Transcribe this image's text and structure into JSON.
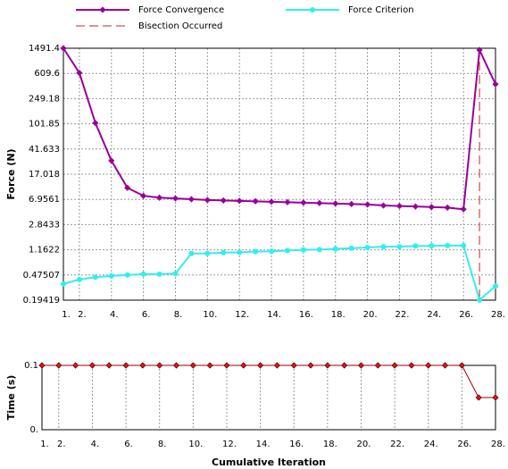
{
  "chart_data": [
    {
      "type": "line",
      "log_y": true,
      "grid": true,
      "y_label": "Force (N)",
      "x": [
        1,
        2,
        3,
        4,
        5,
        6,
        7,
        8,
        9,
        10,
        11,
        12,
        13,
        14,
        15,
        16,
        17,
        18,
        19,
        20,
        21,
        22,
        23,
        24,
        25,
        26,
        27,
        28
      ],
      "xlim": [
        1,
        28
      ],
      "xticks": [
        {
          "value": 1,
          "label": "1."
        },
        {
          "value": 2,
          "label": "2."
        },
        {
          "value": 4,
          "label": "4."
        },
        {
          "value": 6,
          "label": "6."
        },
        {
          "value": 8,
          "label": "8."
        },
        {
          "value": 10,
          "label": "10."
        },
        {
          "value": 12,
          "label": "12."
        },
        {
          "value": 14,
          "label": "14."
        },
        {
          "value": 16,
          "label": "16."
        },
        {
          "value": 18,
          "label": "18."
        },
        {
          "value": 20,
          "label": "20."
        },
        {
          "value": 22,
          "label": "22."
        },
        {
          "value": 24,
          "label": "24."
        },
        {
          "value": 26,
          "label": "26."
        },
        {
          "value": 28,
          "label": "28."
        }
      ],
      "ylim": [
        0.19419,
        1491.4
      ],
      "yticks": [
        0.19419,
        0.47507,
        1.1622,
        2.8433,
        6.9561,
        17.018,
        41.633,
        101.85,
        249.18,
        609.6,
        1491.4
      ],
      "series": [
        {
          "name": "Force Convergence",
          "color": "#990099",
          "marker": "diamond",
          "values": [
            1491.4,
            620,
            105,
            27.5,
            10.5,
            7.9,
            7.4,
            7.2,
            7.0,
            6.8,
            6.7,
            6.6,
            6.5,
            6.4,
            6.3,
            6.2,
            6.1,
            6.0,
            5.9,
            5.8,
            5.6,
            5.5,
            5.4,
            5.3,
            5.2,
            4.9,
            1400,
            416
          ]
        },
        {
          "name": "Force Criterion",
          "color": "#33eeee",
          "marker": "circle",
          "values": [
            0.345,
            0.405,
            0.44,
            0.46,
            0.475,
            0.49,
            0.49,
            0.5,
            1.02,
            1.02,
            1.05,
            1.06,
            1.09,
            1.1,
            1.13,
            1.16,
            1.17,
            1.2,
            1.23,
            1.26,
            1.3,
            1.3,
            1.33,
            1.34,
            1.35,
            1.35,
            0.195,
            0.32
          ]
        }
      ],
      "bisection": {
        "name": "Bisection Occurred",
        "x": 27,
        "color": "#cc2222"
      }
    },
    {
      "type": "line",
      "log_y": false,
      "grid": true,
      "y_label": "Time (s)",
      "x_label": "Cumulative Iteration",
      "x": [
        1,
        2,
        3,
        4,
        5,
        6,
        7,
        8,
        9,
        10,
        11,
        12,
        13,
        14,
        15,
        16,
        17,
        18,
        19,
        20,
        21,
        22,
        23,
        24,
        25,
        26,
        27,
        28
      ],
      "xlim": [
        1,
        28
      ],
      "xticks": [
        {
          "value": 1,
          "label": "1."
        },
        {
          "value": 2,
          "label": "2."
        },
        {
          "value": 4,
          "label": "4."
        },
        {
          "value": 6,
          "label": "6."
        },
        {
          "value": 8,
          "label": "8."
        },
        {
          "value": 10,
          "label": "10."
        },
        {
          "value": 12,
          "label": "12."
        },
        {
          "value": 14,
          "label": "14."
        },
        {
          "value": 16,
          "label": "16."
        },
        {
          "value": 18,
          "label": "18."
        },
        {
          "value": 20,
          "label": "20."
        },
        {
          "value": 22,
          "label": "22."
        },
        {
          "value": 24,
          "label": "24."
        },
        {
          "value": 26,
          "label": "26."
        },
        {
          "value": 28,
          "label": "28."
        }
      ],
      "ylim": [
        0,
        0.1
      ],
      "yticks": [
        {
          "value": 0,
          "label": "0."
        },
        0.1
      ],
      "series": [
        {
          "color": "#990000",
          "marker_fill": "#ee1111",
          "marker": "diamond",
          "values": [
            0.1,
            0.1,
            0.1,
            0.1,
            0.1,
            0.1,
            0.1,
            0.1,
            0.1,
            0.1,
            0.1,
            0.1,
            0.1,
            0.1,
            0.1,
            0.1,
            0.1,
            0.1,
            0.1,
            0.1,
            0.1,
            0.1,
            0.1,
            0.1,
            0.1,
            0.1,
            0.05,
            0.05
          ]
        }
      ]
    }
  ]
}
